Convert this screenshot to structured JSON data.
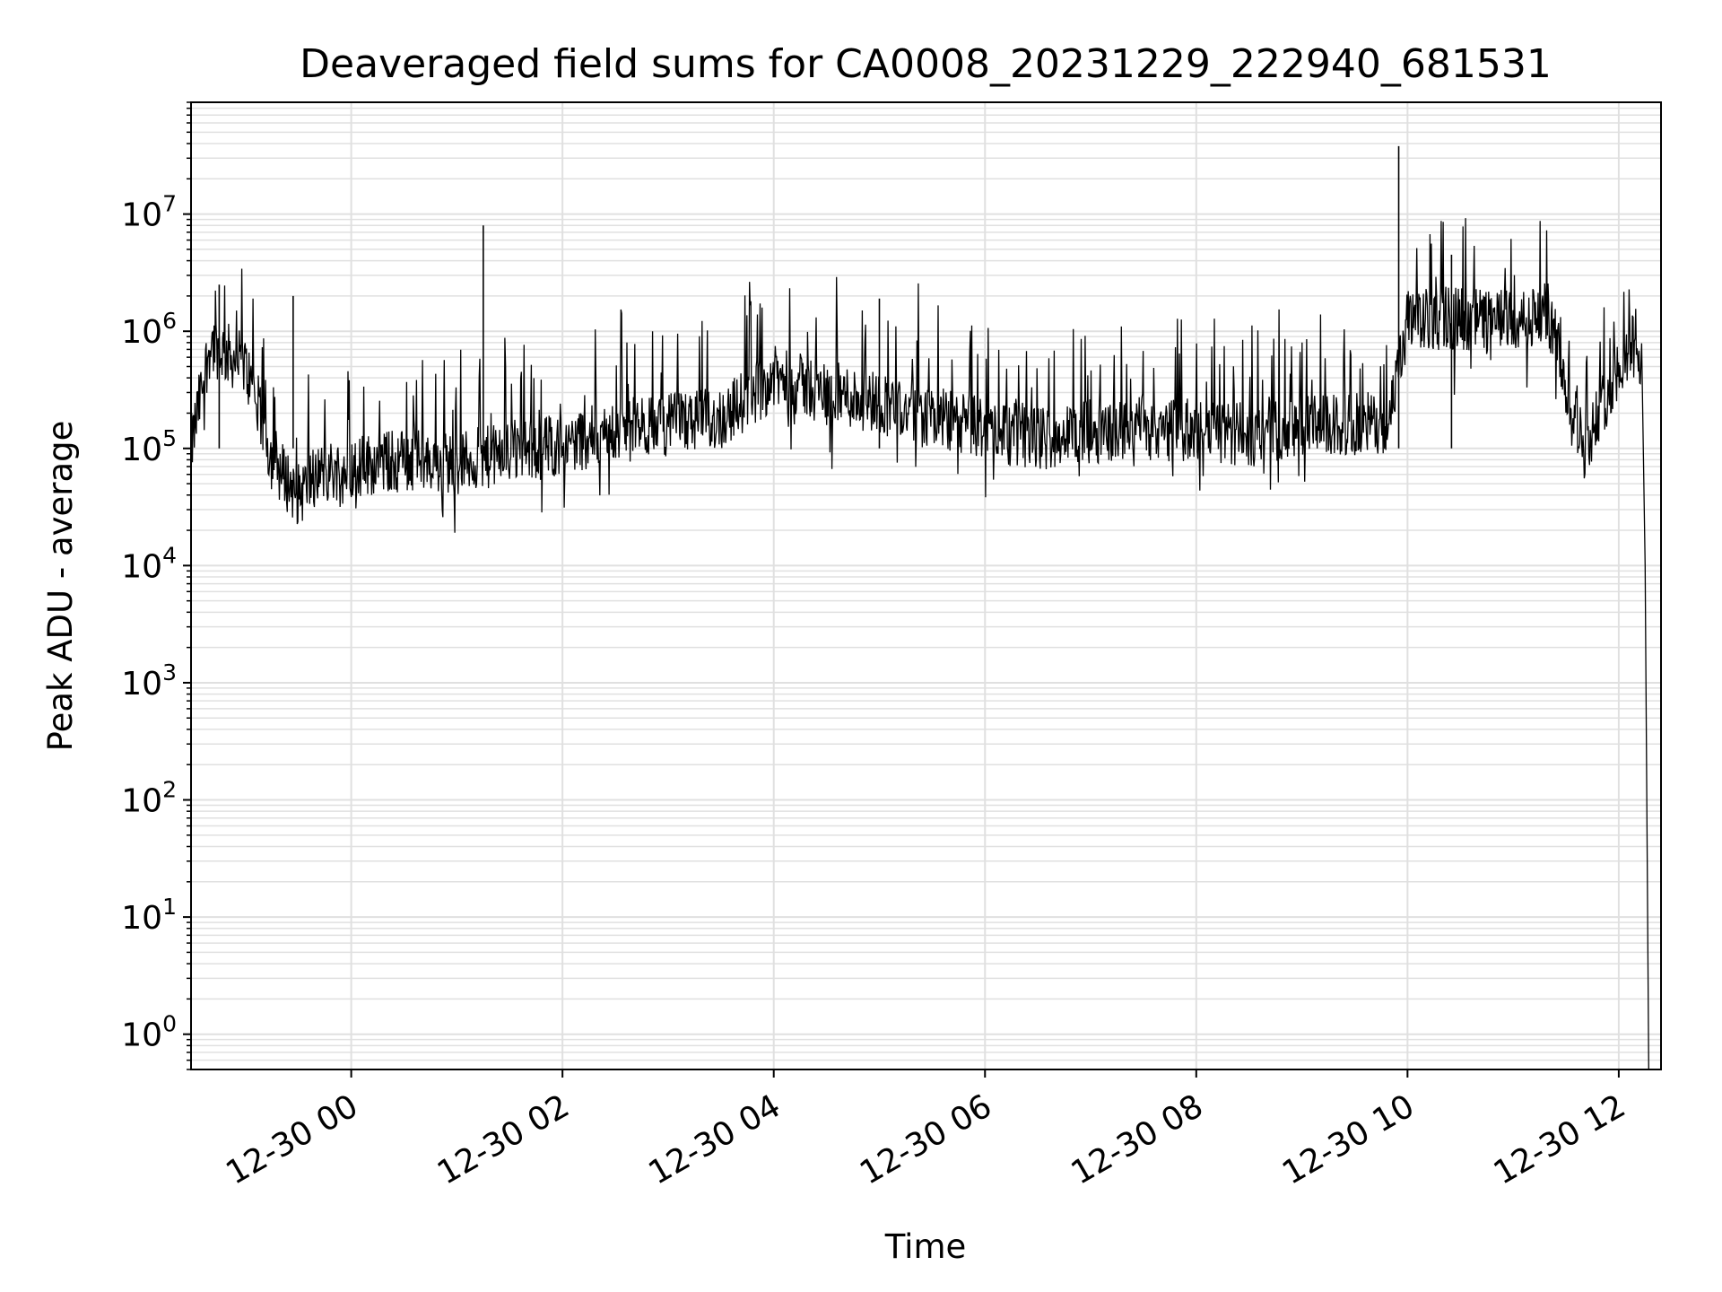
{
  "chart_data": {
    "type": "line",
    "title": "Deaveraged field sums for CA0008_20231229_222940_681531",
    "xlabel": "Time",
    "ylabel": "Peak ADU - average",
    "y_scale": "log",
    "ylim": [
      0.5,
      90000000
    ],
    "xlim": [
      "2023-12-29 22:29",
      "2023-12-30 12:24"
    ],
    "grid": true,
    "grid_color": "#e0e0e0",
    "line_color": "#000000",
    "x_ticks": [
      {
        "value": "2023-12-30 00:00",
        "label": "12-30 00"
      },
      {
        "value": "2023-12-30 02:00",
        "label": "12-30 02"
      },
      {
        "value": "2023-12-30 04:00",
        "label": "12-30 04"
      },
      {
        "value": "2023-12-30 06:00",
        "label": "12-30 06"
      },
      {
        "value": "2023-12-30 08:00",
        "label": "12-30 08"
      },
      {
        "value": "2023-12-30 10:00",
        "label": "12-30 10"
      },
      {
        "value": "2023-12-30 12:00",
        "label": "12-30 12"
      }
    ],
    "y_ticks": [
      {
        "value": 1,
        "base": "10",
        "exp": "0"
      },
      {
        "value": 10,
        "base": "10",
        "exp": "1"
      },
      {
        "value": 100,
        "base": "10",
        "exp": "2"
      },
      {
        "value": 1000,
        "base": "10",
        "exp": "3"
      },
      {
        "value": 10000,
        "base": "10",
        "exp": "4"
      },
      {
        "value": 100000,
        "base": "10",
        "exp": "5"
      },
      {
        "value": 1000000,
        "base": "10",
        "exp": "6"
      },
      {
        "value": 10000000,
        "base": "10",
        "exp": "7"
      }
    ],
    "series": [
      {
        "x": [
          "2023-12-29 22:29",
          "2023-12-29 22:40",
          "2023-12-29 23:00",
          "2023-12-29 23:15",
          "2023-12-29 23:30",
          "2023-12-29 23:40",
          "2023-12-30 00:00",
          "2023-12-30 00:30",
          "2023-12-30 01:00",
          "2023-12-30 01:30",
          "2023-12-30 02:00",
          "2023-12-30 02:30",
          "2023-12-30 03:00",
          "2023-12-30 03:30",
          "2023-12-30 04:00",
          "2023-12-30 04:30",
          "2023-12-30 05:00",
          "2023-12-30 05:30",
          "2023-12-30 06:00",
          "2023-12-30 06:30",
          "2023-12-30 07:00",
          "2023-12-30 07:30",
          "2023-12-30 08:00",
          "2023-12-30 08:30",
          "2023-12-30 09:00",
          "2023-12-30 09:30",
          "2023-12-30 09:50",
          "2023-12-30 10:00",
          "2023-12-30 10:30",
          "2023-12-30 11:00",
          "2023-12-30 11:20",
          "2023-12-30 11:40",
          "2023-12-30 12:00",
          "2023-12-30 12:10",
          "2023-12-30 12:13",
          "2023-12-30 12:15",
          "2023-12-30 12:17"
        ],
        "y": [
          100000,
          800000,
          500000,
          80000,
          40000,
          60000,
          70000,
          80000,
          75000,
          90000,
          110000,
          140000,
          160000,
          180000,
          400000,
          300000,
          250000,
          180000,
          150000,
          120000,
          140000,
          150000,
          140000,
          130000,
          150000,
          160000,
          170000,
          1200000,
          1300000,
          1200000,
          1400000,
          100000,
          500000,
          1000000,
          400000,
          10000,
          0.5
        ]
      }
    ],
    "spikes": [
      {
        "x": "2023-12-29 22:45",
        "y": 2500000
      },
      {
        "x": "2023-12-29 23:27",
        "y": 2000000
      },
      {
        "x": "2023-12-30 01:15",
        "y": 8000000
      },
      {
        "x": "2023-12-30 05:00",
        "y": 1900000
      },
      {
        "x": "2023-12-30 09:55",
        "y": 38000000
      },
      {
        "x": "2023-12-30 10:25",
        "y": 4500000
      }
    ]
  }
}
